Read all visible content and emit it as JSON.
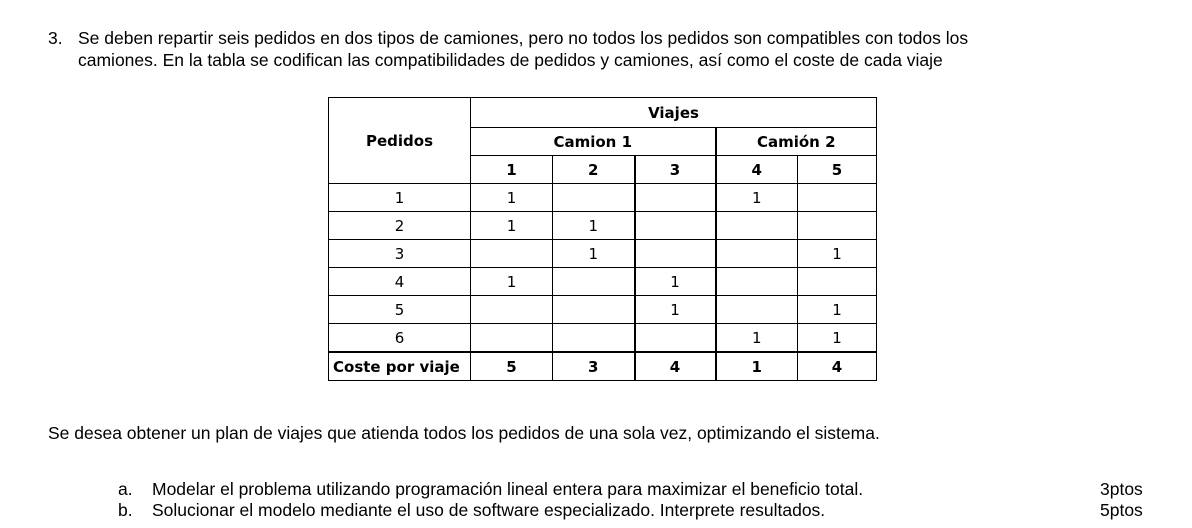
{
  "question": {
    "number": "3.",
    "line1": "Se deben repartir seis pedidos en dos tipos de camiones, pero no todos los pedidos son compatibles con todos los",
    "line2": "camiones. En la tabla se codifican las compatibilidades de pedidos y camiones, así como el coste de cada viaje"
  },
  "table": {
    "header_pedidos": "Pedidos",
    "header_viajes": "Viajes",
    "truck1": "Camion 1",
    "truck2": "Camión 2",
    "trips": [
      "1",
      "2",
      "3",
      "4",
      "5"
    ],
    "rows": [
      {
        "pedido": "1",
        "cells": [
          "1",
          "",
          "",
          "1",
          ""
        ]
      },
      {
        "pedido": "2",
        "cells": [
          "1",
          "1",
          "",
          "",
          ""
        ]
      },
      {
        "pedido": "3",
        "cells": [
          "",
          "1",
          "",
          "",
          "1"
        ]
      },
      {
        "pedido": "4",
        "cells": [
          "1",
          "",
          "1",
          "",
          ""
        ]
      },
      {
        "pedido": "5",
        "cells": [
          "",
          "",
          "1",
          "",
          "1"
        ]
      },
      {
        "pedido": "6",
        "cells": [
          "",
          "",
          "",
          "1",
          "1"
        ]
      }
    ],
    "cost_label": "Coste por viaje",
    "costs": [
      "5",
      "3",
      "4",
      "1",
      "4"
    ]
  },
  "goal": "Se desea obtener un plan de viajes que atienda todos los pedidos de una sola vez, optimizando el sistema.",
  "items": [
    {
      "letter": "a.",
      "text": "Modelar el problema utilizando programación lineal entera para maximizar el beneficio total.",
      "points": "3ptos"
    },
    {
      "letter": "b.",
      "text": "Solucionar el modelo mediante el uso de software especializado. Interprete resultados.",
      "points": "5ptos"
    }
  ]
}
